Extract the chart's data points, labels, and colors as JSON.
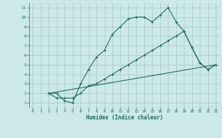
{
  "xlabel": "Humidex (Indice chaleur)",
  "bg_color": "#cce8e8",
  "grid_color": "#aacccc",
  "line_color": "#1a6b5a",
  "tick_color": "#1a6b5a",
  "xlim": [
    -0.5,
    23.5
  ],
  "ylim": [
    0.5,
    11.5
  ],
  "xticks": [
    0,
    1,
    2,
    3,
    4,
    5,
    6,
    7,
    8,
    9,
    10,
    11,
    12,
    13,
    14,
    15,
    16,
    17,
    18,
    19,
    20,
    21,
    22,
    23
  ],
  "yticks": [
    1,
    2,
    3,
    4,
    5,
    6,
    7,
    8,
    9,
    10,
    11
  ],
  "line1_x": [
    2,
    3,
    4,
    5,
    6,
    7,
    8,
    9,
    10,
    11,
    12,
    13,
    14,
    15,
    16,
    17,
    18,
    19,
    20,
    21,
    22,
    23
  ],
  "line1_y": [
    2.0,
    2.0,
    1.2,
    1.0,
    3.0,
    4.5,
    5.8,
    6.5,
    8.2,
    9.0,
    9.8,
    10.0,
    10.0,
    9.5,
    10.2,
    11.0,
    9.5,
    8.5,
    6.8,
    5.2,
    4.5,
    5.0
  ],
  "line2_x": [
    2,
    3,
    4,
    5,
    6,
    7,
    8,
    9,
    10,
    11,
    12,
    13,
    14,
    15,
    16,
    17,
    18,
    19,
    20,
    21,
    22,
    23
  ],
  "line2_y": [
    2.0,
    1.5,
    1.5,
    1.5,
    2.0,
    2.8,
    3.0,
    3.5,
    4.0,
    4.5,
    5.0,
    5.5,
    6.0,
    6.5,
    7.0,
    7.5,
    8.0,
    8.5,
    6.8,
    5.2,
    4.5,
    5.0
  ],
  "line3_x": [
    2,
    23
  ],
  "line3_y": [
    2.0,
    5.0
  ]
}
